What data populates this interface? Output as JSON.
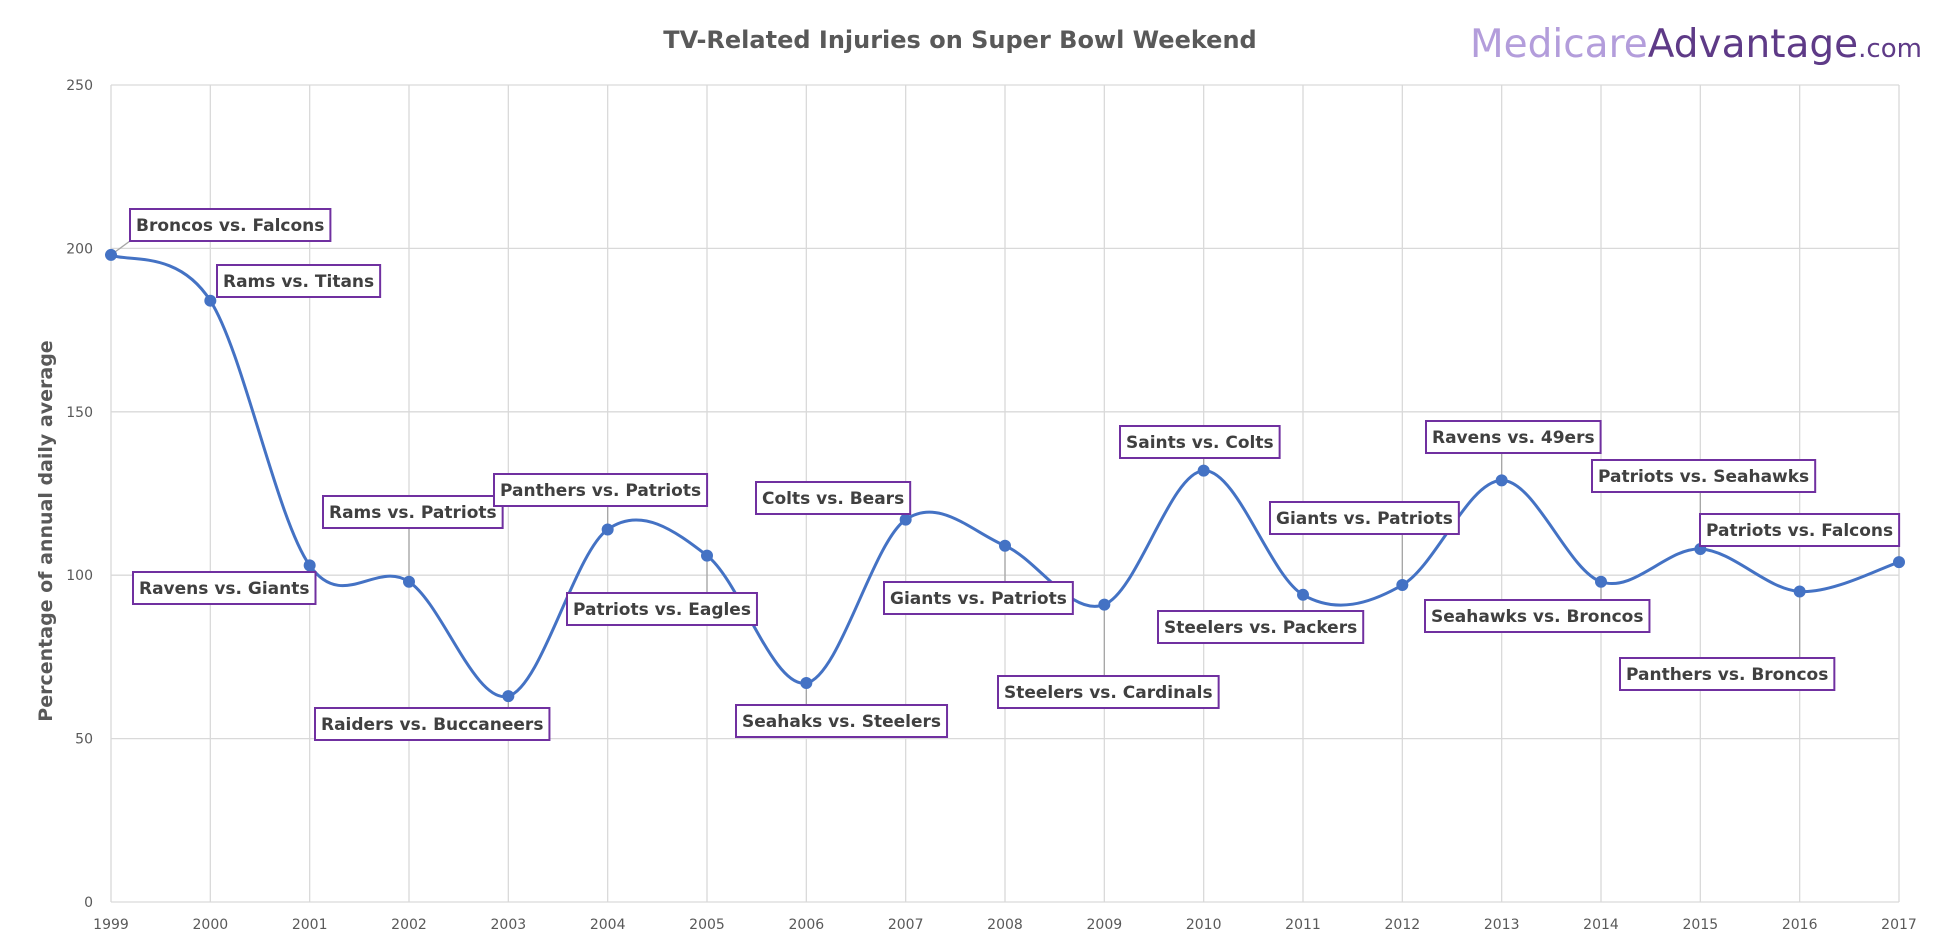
{
  "logo": {
    "part1": "Medicare",
    "part2": "Advantage",
    "part3": ".com",
    "color1": "#b39ddb",
    "color2": "#5e3a87"
  },
  "chart_data": {
    "type": "line",
    "title": "TV-Related Injuries on Super Bowl Weekend",
    "xlabel": "",
    "ylabel": "Percentage of annual daily average",
    "ylim": [
      0,
      250
    ],
    "yticks": [
      0,
      50,
      100,
      150,
      200,
      250
    ],
    "grid": true,
    "smooth": true,
    "colors": {
      "series": "#4472c4",
      "label_border": "#7030a0",
      "grid": "#d9d9d9",
      "leader": "#a6a6a6"
    },
    "x": [
      "1999",
      "2000",
      "2001",
      "2002",
      "2003",
      "2004",
      "2005",
      "2006",
      "2007",
      "2008",
      "2009",
      "2010",
      "2011",
      "2012",
      "2013",
      "2014",
      "2015",
      "2016",
      "2017"
    ],
    "series": [
      {
        "values": [
          198,
          184,
          103,
          98,
          63,
          114,
          106,
          67,
          117,
          109,
          91,
          132,
          94,
          97,
          129,
          98,
          108,
          95,
          104
        ],
        "labels": [
          "Broncos vs. Falcons",
          "Rams vs. Titans",
          "Ravens vs. Giants",
          "Rams vs. Patriots",
          "Raiders vs. Buccaneers",
          "Panthers vs. Patriots",
          "Patriots vs. Eagles",
          "Seahaks vs. Steelers",
          "Colts vs. Bears",
          "Giants vs. Patriots",
          "Steelers vs. Cardinals",
          "Saints vs. Colts",
          "Steelers vs. Packers",
          "Giants vs. Patriots",
          "Ravens vs. 49ers",
          "Seahawks vs. Broncos",
          "Patriots vs. Seahawks",
          "Panthers vs. Broncos",
          "Patriots vs. Falcons"
        ]
      }
    ]
  }
}
